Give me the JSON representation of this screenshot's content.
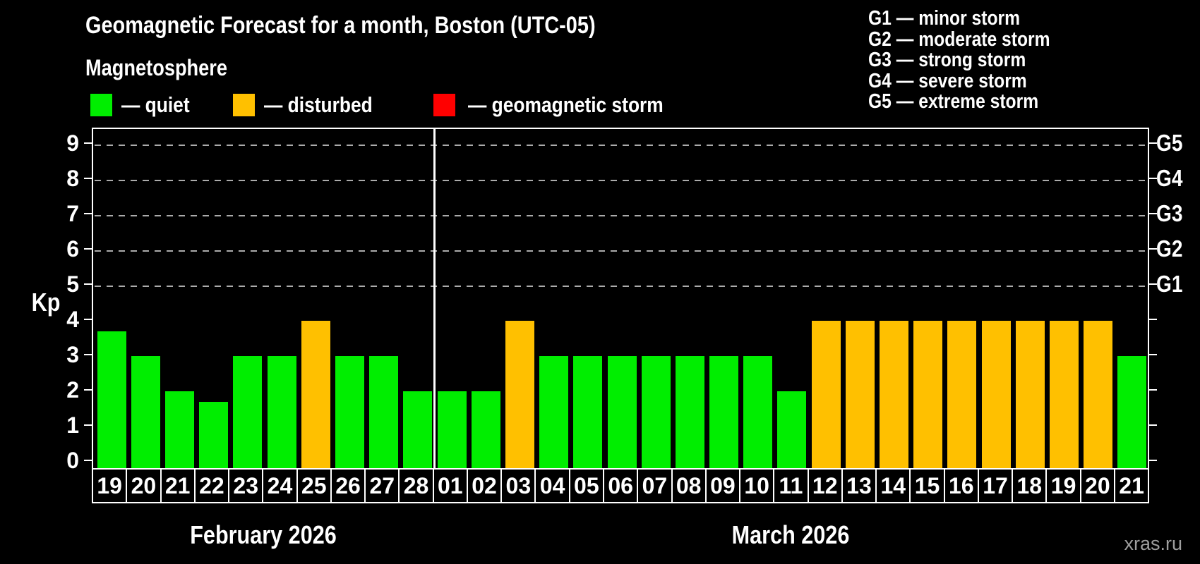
{
  "title": "Geomagnetic Forecast for a month, Boston (UTC-05)",
  "subtitle": "Magnetosphere",
  "watermark": "xras.ru",
  "legend": {
    "items": [
      {
        "key": "quiet",
        "label": "— quiet",
        "color": "#00ee00"
      },
      {
        "key": "disturbed",
        "label": "— disturbed",
        "color": "#ffc000"
      },
      {
        "key": "storm",
        "label": "— geomagnetic storm",
        "color": "#ff0000"
      }
    ]
  },
  "g_scale_legend": {
    "lines": [
      "G1 — minor storm",
      "G2 — moderate storm",
      "G3 — strong storm",
      "G4 — severe storm",
      "G5 — extreme storm"
    ]
  },
  "chart_data": {
    "type": "bar",
    "title": "Geomagnetic Forecast for a month, Boston (UTC-05)",
    "ylabel": "Kp",
    "ylim": [
      0,
      9.4
    ],
    "yticks": [
      0,
      1,
      2,
      3,
      4,
      5,
      6,
      7,
      8,
      9
    ],
    "gridlines_at": [
      5,
      6,
      7,
      8,
      9
    ],
    "grid": "dashed horizontal lines at Kp 5-9",
    "legend_position": "top-left",
    "right_axis": [
      {
        "label": "G1",
        "kp": 5
      },
      {
        "label": "G2",
        "kp": 6
      },
      {
        "label": "G3",
        "kp": 7
      },
      {
        "label": "G4",
        "kp": 8
      },
      {
        "label": "G5",
        "kp": 9
      }
    ],
    "months": [
      {
        "label": "February 2026",
        "days": [
          {
            "day": "19",
            "kp": 3.7,
            "state": "quiet"
          },
          {
            "day": "20",
            "kp": 3,
            "state": "quiet"
          },
          {
            "day": "21",
            "kp": 2,
            "state": "quiet"
          },
          {
            "day": "22",
            "kp": 1.7,
            "state": "quiet"
          },
          {
            "day": "23",
            "kp": 3,
            "state": "quiet"
          },
          {
            "day": "24",
            "kp": 3,
            "state": "quiet"
          },
          {
            "day": "25",
            "kp": 4,
            "state": "disturbed"
          },
          {
            "day": "26",
            "kp": 3,
            "state": "quiet"
          },
          {
            "day": "27",
            "kp": 3,
            "state": "quiet"
          },
          {
            "day": "28",
            "kp": 2,
            "state": "quiet"
          }
        ]
      },
      {
        "label": "March 2026",
        "days": [
          {
            "day": "01",
            "kp": 2,
            "state": "quiet"
          },
          {
            "day": "02",
            "kp": 2,
            "state": "quiet"
          },
          {
            "day": "03",
            "kp": 4,
            "state": "disturbed"
          },
          {
            "day": "04",
            "kp": 3,
            "state": "quiet"
          },
          {
            "day": "05",
            "kp": 3,
            "state": "quiet"
          },
          {
            "day": "06",
            "kp": 3,
            "state": "quiet"
          },
          {
            "day": "07",
            "kp": 3,
            "state": "quiet"
          },
          {
            "day": "08",
            "kp": 3,
            "state": "quiet"
          },
          {
            "day": "09",
            "kp": 3,
            "state": "quiet"
          },
          {
            "day": "10",
            "kp": 3,
            "state": "quiet"
          },
          {
            "day": "11",
            "kp": 2,
            "state": "quiet"
          },
          {
            "day": "12",
            "kp": 4,
            "state": "disturbed"
          },
          {
            "day": "13",
            "kp": 4,
            "state": "disturbed"
          },
          {
            "day": "14",
            "kp": 4,
            "state": "disturbed"
          },
          {
            "day": "15",
            "kp": 4,
            "state": "disturbed"
          },
          {
            "day": "16",
            "kp": 4,
            "state": "disturbed"
          },
          {
            "day": "17",
            "kp": 4,
            "state": "disturbed"
          },
          {
            "day": "18",
            "kp": 4,
            "state": "disturbed"
          },
          {
            "day": "19",
            "kp": 4,
            "state": "disturbed"
          },
          {
            "day": "20",
            "kp": 4,
            "state": "disturbed"
          },
          {
            "day": "21",
            "kp": 3,
            "state": "quiet"
          }
        ]
      }
    ]
  }
}
